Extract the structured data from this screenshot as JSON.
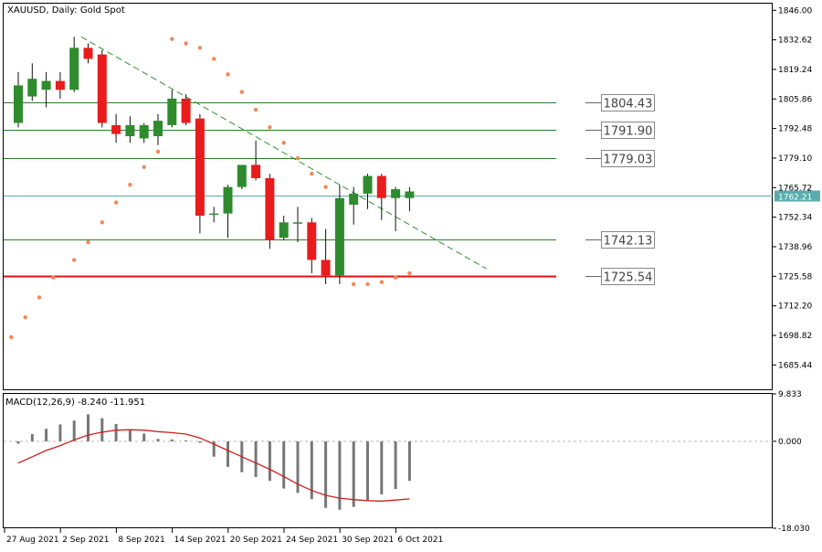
{
  "header": {
    "title": "XAUUSD, Daily:  Gold Spot"
  },
  "colors": {
    "bull": "#2e8b2e",
    "bear": "#e81c1c",
    "level": "#2f7d2f",
    "support": "#e01010",
    "bid": "#5aacac",
    "sar": "#f0875a",
    "trend": "#2f8f2f",
    "macd_hist": "#777777",
    "macd_signal": "#cc2020",
    "frame": "#000000",
    "grid_text": "#000000"
  },
  "chart_data": [
    {
      "type": "candlestick",
      "title": "XAUUSD, Daily:  Gold Spot",
      "y_ticks": [
        "1846.00",
        "1832.62",
        "1819.24",
        "1805.86",
        "1792.48",
        "1779.10",
        "1765.72",
        "1752.34",
        "1738.96",
        "1725.58",
        "1712.20",
        "1698.82",
        "1685.44"
      ],
      "ylim": [
        1674.0,
        1849.0
      ],
      "x_ticks": [
        {
          "label": "27 Aug 2021",
          "index": 0
        },
        {
          "label": "2 Sep 2021",
          "index": 4
        },
        {
          "label": "8 Sep 2021",
          "index": 8
        },
        {
          "label": "14 Sep 2021",
          "index": 12
        },
        {
          "label": "20 Sep 2021",
          "index": 16
        },
        {
          "label": "24 Sep 2021",
          "index": 20
        },
        {
          "label": "30 Sep 2021",
          "index": 24
        },
        {
          "label": "6 Oct 2021",
          "index": 28
        }
      ],
      "candles": [
        {
          "o": 1795,
          "h": 1818,
          "l": 1793,
          "c": 1812
        },
        {
          "o": 1807,
          "h": 1822,
          "l": 1805,
          "c": 1815
        },
        {
          "o": 1810,
          "h": 1818,
          "l": 1802,
          "c": 1814
        },
        {
          "o": 1814,
          "h": 1818,
          "l": 1806,
          "c": 1810
        },
        {
          "o": 1810,
          "h": 1834,
          "l": 1809,
          "c": 1829
        },
        {
          "o": 1829,
          "h": 1831,
          "l": 1822,
          "c": 1824
        },
        {
          "o": 1826,
          "h": 1828,
          "l": 1793,
          "c": 1795
        },
        {
          "o": 1794,
          "h": 1799,
          "l": 1786,
          "c": 1790
        },
        {
          "o": 1789,
          "h": 1798,
          "l": 1786,
          "c": 1794
        },
        {
          "o": 1788,
          "h": 1795,
          "l": 1786,
          "c": 1794
        },
        {
          "o": 1789,
          "h": 1799,
          "l": 1785,
          "c": 1796
        },
        {
          "o": 1794,
          "h": 1810,
          "l": 1793,
          "c": 1806
        },
        {
          "o": 1806,
          "h": 1808,
          "l": 1794,
          "c": 1795
        },
        {
          "o": 1797,
          "h": 1799,
          "l": 1745,
          "c": 1753
        },
        {
          "o": 1754,
          "h": 1757,
          "l": 1750,
          "c": 1754
        },
        {
          "o": 1754,
          "h": 1767,
          "l": 1743,
          "c": 1766
        },
        {
          "o": 1766,
          "h": 1776,
          "l": 1765,
          "c": 1776
        },
        {
          "o": 1776,
          "h": 1787,
          "l": 1769,
          "c": 1770
        },
        {
          "o": 1770,
          "h": 1772,
          "l": 1738,
          "c": 1742
        },
        {
          "o": 1743,
          "h": 1753,
          "l": 1742,
          "c": 1750
        },
        {
          "o": 1750,
          "h": 1757,
          "l": 1741,
          "c": 1750
        },
        {
          "o": 1750,
          "h": 1752,
          "l": 1727,
          "c": 1733
        },
        {
          "o": 1733,
          "h": 1747,
          "l": 1722,
          "c": 1726
        },
        {
          "o": 1726,
          "h": 1767,
          "l": 1722,
          "c": 1761
        },
        {
          "o": 1758,
          "h": 1766,
          "l": 1749,
          "c": 1763
        },
        {
          "o": 1763,
          "h": 1772,
          "l": 1756,
          "c": 1771
        },
        {
          "o": 1771,
          "h": 1772,
          "l": 1751,
          "c": 1761
        },
        {
          "o": 1761,
          "h": 1766,
          "l": 1746,
          "c": 1765
        },
        {
          "o": 1761,
          "h": 1766,
          "l": 1755,
          "c": 1764
        }
      ],
      "levels": [
        {
          "value": 1804.43,
          "label": "1804.43",
          "start_index": 0
        },
        {
          "value": 1791.9,
          "label": "1791.90",
          "start_index": 0
        },
        {
          "value": 1779.03,
          "label": "1779.03",
          "start_index": 0
        },
        {
          "value": 1742.13,
          "label": "1742.13",
          "start_index": 0
        },
        {
          "value": 1725.54,
          "label": "1725.54",
          "start_index": 0,
          "role": "support"
        }
      ],
      "current_price": {
        "value": 1762.21,
        "label": "1762.21"
      },
      "trendline": {
        "from": {
          "index": 4.5,
          "value": 1834
        },
        "to": {
          "index": 33.5,
          "value": 1729
        }
      },
      "parabolic_sar": [
        {
          "index": -0.5,
          "value": 1698
        },
        {
          "index": 0.5,
          "value": 1707
        },
        {
          "index": 1.5,
          "value": 1716
        },
        {
          "index": 2.5,
          "value": 1725
        },
        {
          "index": 4,
          "value": 1733
        },
        {
          "index": 5,
          "value": 1741
        },
        {
          "index": 6,
          "value": 1750
        },
        {
          "index": 7,
          "value": 1759
        },
        {
          "index": 8,
          "value": 1767
        },
        {
          "index": 9,
          "value": 1775
        },
        {
          "index": 10,
          "value": 1782
        },
        {
          "index": 11,
          "value": 1833
        },
        {
          "index": 12,
          "value": 1831
        },
        {
          "index": 13,
          "value": 1829
        },
        {
          "index": 14,
          "value": 1824
        },
        {
          "index": 15,
          "value": 1817
        },
        {
          "index": 16,
          "value": 1809
        },
        {
          "index": 17,
          "value": 1801
        },
        {
          "index": 18,
          "value": 1793
        },
        {
          "index": 19,
          "value": 1786
        },
        {
          "index": 20,
          "value": 1779
        },
        {
          "index": 21,
          "value": 1772
        },
        {
          "index": 22,
          "value": 1766
        },
        {
          "index": 23,
          "value": 1760
        },
        {
          "index": 24,
          "value": 1722
        },
        {
          "index": 25,
          "value": 1722
        },
        {
          "index": 26,
          "value": 1723
        },
        {
          "index": 27,
          "value": 1725
        },
        {
          "index": 28,
          "value": 1727
        }
      ]
    },
    {
      "type": "bar",
      "title": "MACD(12,26,9) -8.240 -11.951",
      "y_ticks": [
        "9.833",
        "0.000",
        "-18.030"
      ],
      "ylim": [
        -18.03,
        9.833
      ],
      "zero_line": true,
      "series": [
        {
          "name": "MACD",
          "values": [
            -0.5,
            1.5,
            2.6,
            3.5,
            4.3,
            5.6,
            4.8,
            3.6,
            2.4,
            1.6,
            0.5,
            0.4,
            0.2,
            -0.3,
            -3.2,
            -5.3,
            -6.4,
            -7.4,
            -8.2,
            -9.8,
            -10.7,
            -12.0,
            -13.8,
            -14.2,
            -13.6,
            -12.2,
            -11.0,
            -9.9,
            -8.2
          ],
          "type": "histogram"
        },
        {
          "name": "Signal",
          "values": [
            -4.5,
            -3.2,
            -1.9,
            -0.9,
            0.3,
            1.3,
            1.9,
            2.3,
            2.4,
            2.3,
            2.0,
            1.8,
            1.5,
            0.7,
            -0.6,
            -1.9,
            -3.2,
            -4.5,
            -5.8,
            -7.3,
            -8.9,
            -10.2,
            -11.2,
            -11.8,
            -12.1,
            -12.3,
            -12.4,
            -12.2,
            -11.95
          ],
          "type": "line"
        }
      ]
    }
  ]
}
